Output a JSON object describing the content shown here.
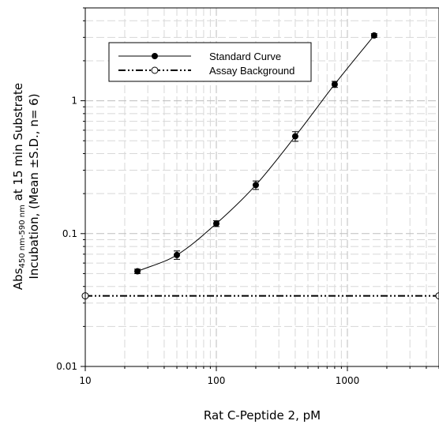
{
  "chart_data": {
    "type": "line",
    "x_scale": "log",
    "y_scale": "log",
    "xlim": [
      10,
      5000
    ],
    "ylim": [
      0.01,
      5
    ],
    "grid": true,
    "legend_position": "top-left",
    "xlabel": "Rat C-Peptide 2, pM",
    "ylabel_line1_prefix": "Abs",
    "ylabel_line1_sub": "450 nm-590 nm",
    "ylabel_line1_suffix": " at 15 min Substrate",
    "ylabel_line2": "Incubation, (Mean ±S.D., n= 6)",
    "x_ticks": [
      {
        "value": 10,
        "label": "10"
      },
      {
        "value": 100,
        "label": "100"
      },
      {
        "value": 1000,
        "label": "1000"
      }
    ],
    "y_ticks": [
      {
        "value": 0.01,
        "label": "0.01"
      },
      {
        "value": 0.1,
        "label": "0.1"
      },
      {
        "value": 1,
        "label": "1"
      }
    ],
    "series": [
      {
        "name": "Standard Curve",
        "style": "solid",
        "marker": "filled-circle",
        "x": [
          25,
          50,
          100,
          200,
          400,
          800,
          1600
        ],
        "y": [
          0.052,
          0.069,
          0.119,
          0.232,
          0.54,
          1.33,
          3.1
        ],
        "error": [
          0.002,
          0.005,
          0.006,
          0.017,
          0.045,
          0.07,
          0.1
        ]
      },
      {
        "name": "Assay Background",
        "style": "dash-dot-dot",
        "marker": "open-circle",
        "x": [
          10,
          5000
        ],
        "y": [
          0.034,
          0.034
        ]
      }
    ]
  }
}
